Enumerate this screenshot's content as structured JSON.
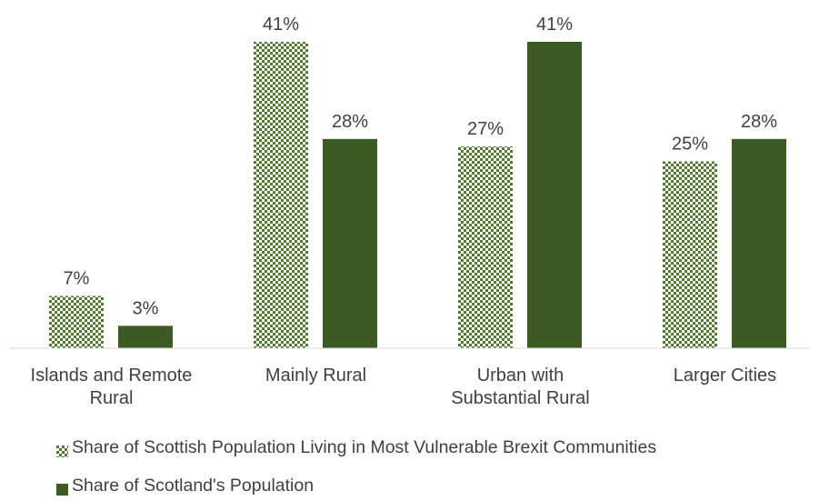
{
  "chart_data": {
    "type": "bar",
    "title": "",
    "xlabel": "",
    "ylabel": "",
    "ylim": [
      0,
      45
    ],
    "grid": false,
    "legend_position": "bottom",
    "categories": [
      [
        "Islands and Remote",
        "Rural"
      ],
      [
        "Mainly Rural"
      ],
      [
        "Urban with",
        "Substantial Rural"
      ],
      [
        "Larger Cities"
      ]
    ],
    "series": [
      {
        "name": "Share of Scottish Population Living in Most Vulnerable Brexit Communities",
        "values": [
          7,
          41,
          27,
          25
        ],
        "labels": [
          "7%",
          "41%",
          "27%",
          "25%"
        ],
        "color": "#3B5A24",
        "pattern": "checkered"
      },
      {
        "name": "Share of Scotland's Population",
        "values": [
          3,
          28,
          41,
          28
        ],
        "labels": [
          "3%",
          "28%",
          "41%",
          "28%"
        ],
        "color": "#3B5A24",
        "pattern": "solid"
      }
    ]
  }
}
